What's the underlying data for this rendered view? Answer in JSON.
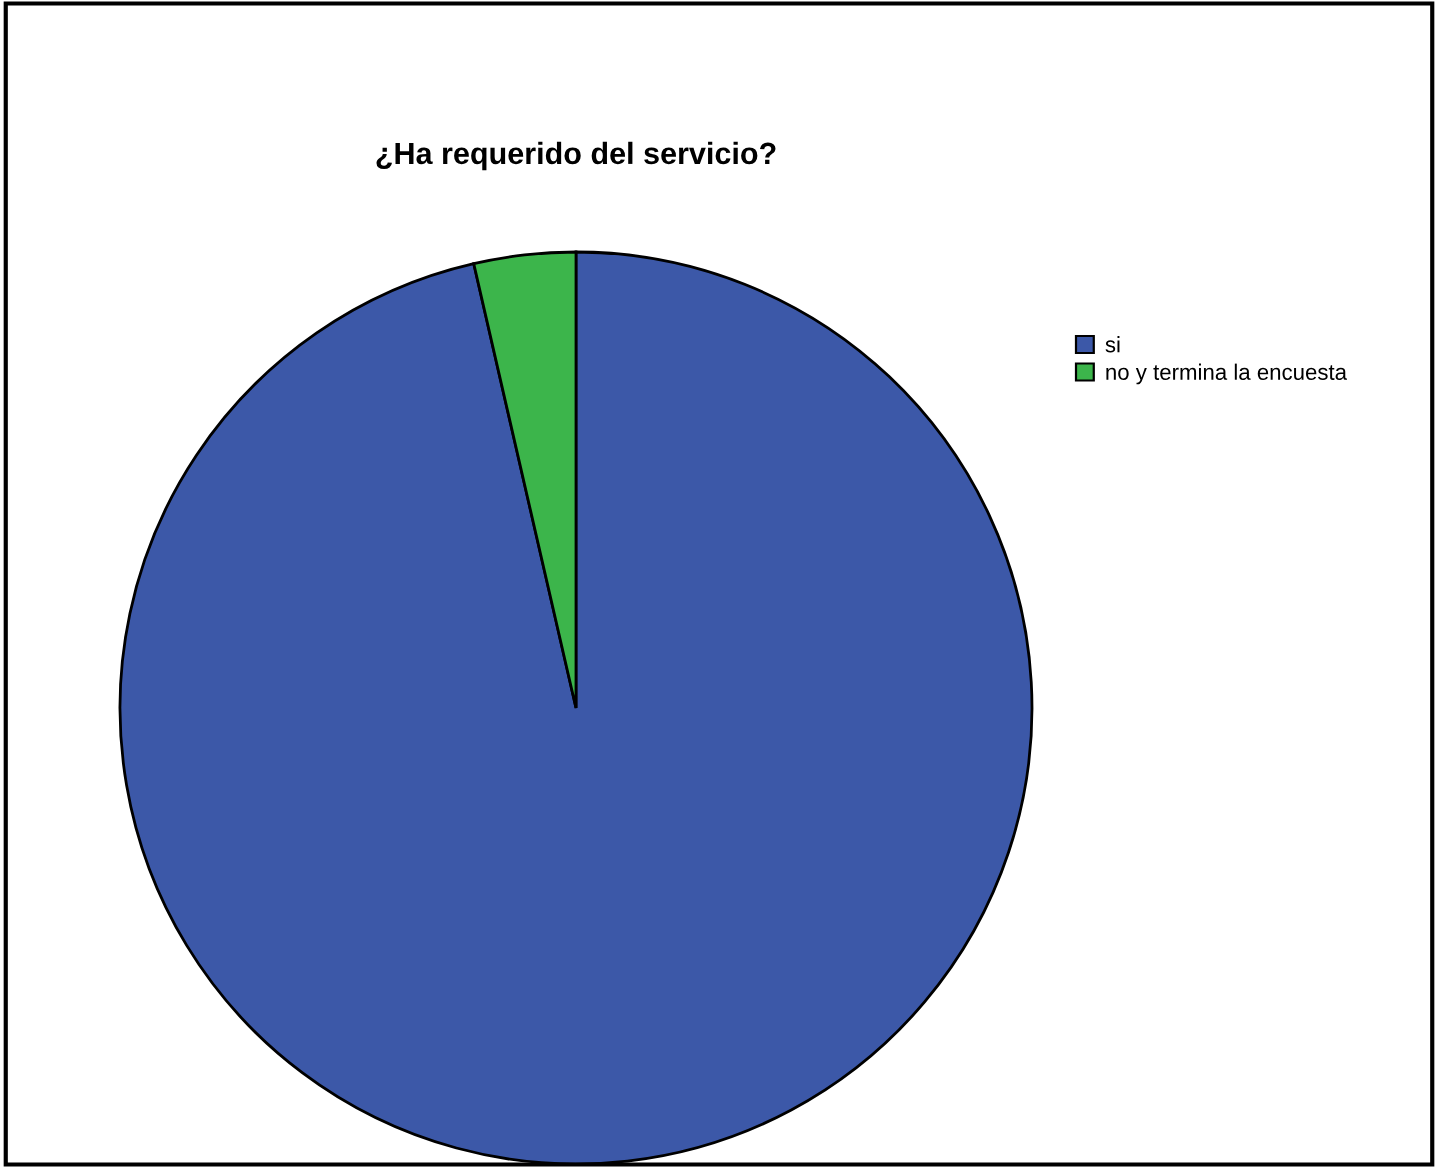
{
  "chart_data": {
    "type": "pie",
    "title": "¿Ha requerido del servicio?",
    "categories": [
      "si",
      "no y termina la encuesta"
    ],
    "values": [
      96.4,
      3.6
    ],
    "colors": [
      "#3c58a8",
      "#3cb54b"
    ],
    "legend": "right"
  }
}
